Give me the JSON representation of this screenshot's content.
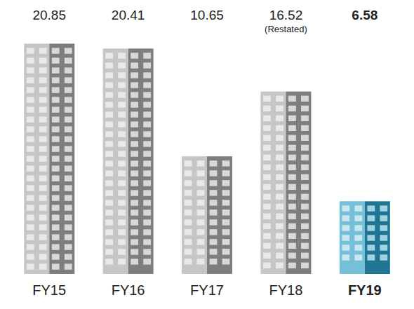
{
  "chart_data": {
    "type": "bar",
    "categories": [
      "FY15",
      "FY16",
      "FY17",
      "FY18",
      "FY19"
    ],
    "values": [
      20.85,
      20.41,
      10.65,
      16.52,
      6.58
    ],
    "colors": [
      "#a8a8a8",
      "#a8a8a8",
      "#a8a8a8",
      "#a8a8a8",
      "#2a9cc4"
    ],
    "ylim": [
      0,
      21
    ],
    "data_labels": true,
    "tick_labels": "x",
    "annotations": [
      {
        "category": "FY18",
        "text": "(Restated)"
      }
    ]
  }
}
